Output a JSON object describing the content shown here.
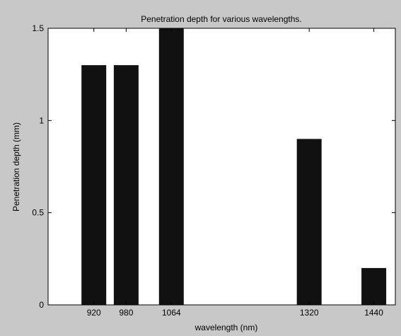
{
  "chart_data": {
    "type": "bar",
    "title": "Penetration depth for various wavelengths.",
    "xlabel": "wavelength (nm)",
    "ylabel": "Penetration depth (mm)",
    "x": [
      920,
      980,
      1064,
      1320,
      1440
    ],
    "x_tick_labels": [
      "920",
      "980",
      "1064",
      "1320",
      "1440"
    ],
    "values": [
      1.3,
      1.3,
      1.5,
      0.9,
      0.2
    ],
    "xlim": [
      835,
      1480
    ],
    "ylim": [
      0,
      1.5
    ],
    "y_ticks": [
      0,
      0.5,
      1,
      1.5
    ],
    "y_tick_labels": [
      "0",
      "0.5",
      "1",
      "1.5"
    ],
    "grid": false,
    "bar_color": "#111111",
    "background_color": "#c8c8c8",
    "plot_background_color": "#ffffff"
  }
}
